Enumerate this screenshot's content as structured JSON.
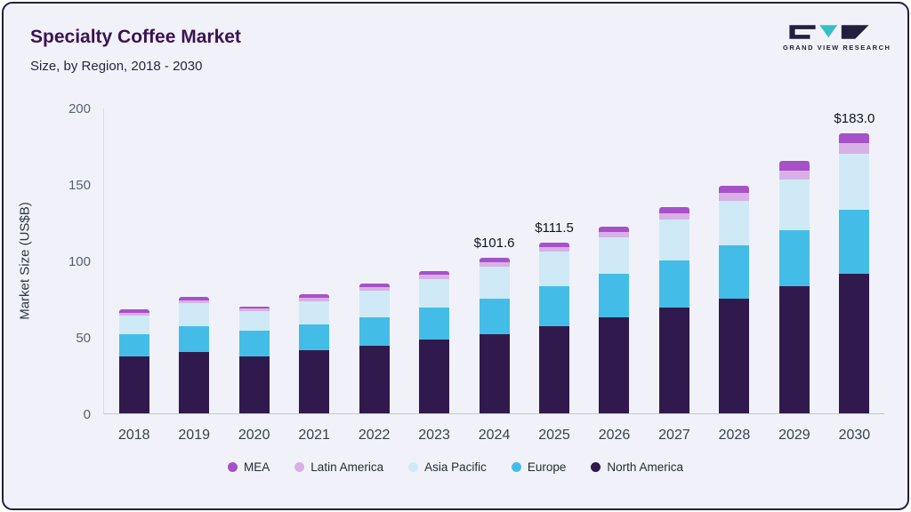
{
  "header": {
    "title": "Specialty Coffee Market",
    "subtitle": "Size, by Region, 2018 - 2030",
    "brand": "GRAND VIEW RESEARCH"
  },
  "colors": {
    "background": "#f1f2f9",
    "border": "#24203f",
    "title": "#3c1253",
    "logo_teal": "#35bfc6",
    "logo_dark": "#23203f"
  },
  "chart_data": {
    "type": "bar",
    "stacked": true,
    "title": "Specialty Coffee Market Size, by Region, 2018 - 2030",
    "xlabel": "",
    "ylabel": "Market Size (US$B)",
    "ylim": [
      0,
      200
    ],
    "yticks": [
      0,
      50,
      100,
      150,
      200
    ],
    "grid": false,
    "legend_position": "bottom",
    "categories": [
      "2018",
      "2019",
      "2020",
      "2021",
      "2022",
      "2023",
      "2024",
      "2025",
      "2026",
      "2027",
      "2028",
      "2029",
      "2030"
    ],
    "series": [
      {
        "name": "North America",
        "color": "#301a4d",
        "values": [
          37,
          40,
          37,
          41,
          44,
          48,
          52,
          57,
          63,
          69,
          75,
          83,
          91
        ]
      },
      {
        "name": "Europe",
        "color": "#43bde8",
        "values": [
          15,
          17,
          17,
          17,
          19,
          21,
          23,
          26,
          28,
          31,
          35,
          37,
          42
        ]
      },
      {
        "name": "Asia Pacific",
        "color": "#cfeaf6",
        "values": [
          12,
          15,
          13,
          15,
          17,
          19,
          21,
          23,
          24,
          27,
          29,
          33,
          37
        ]
      },
      {
        "name": "Latin America",
        "color": "#d8b0e6",
        "values": [
          2,
          2,
          1.5,
          2.5,
          2.5,
          2.5,
          3,
          3,
          3.5,
          4,
          5,
          6,
          6.5
        ]
      },
      {
        "name": "MEA",
        "color": "#a751c9",
        "values": [
          2,
          2,
          1.5,
          2.5,
          2.5,
          2.5,
          2.6,
          2.5,
          3.5,
          4,
          5,
          6,
          6.5
        ]
      }
    ],
    "totals_labels": [
      "",
      "",
      "",
      "",
      "",
      "",
      "$101.6",
      "$111.5",
      "",
      "",
      "",
      "",
      "$183.0"
    ],
    "legend_order": [
      "MEA",
      "Latin America",
      "Asia Pacific",
      "Europe",
      "North America"
    ]
  }
}
